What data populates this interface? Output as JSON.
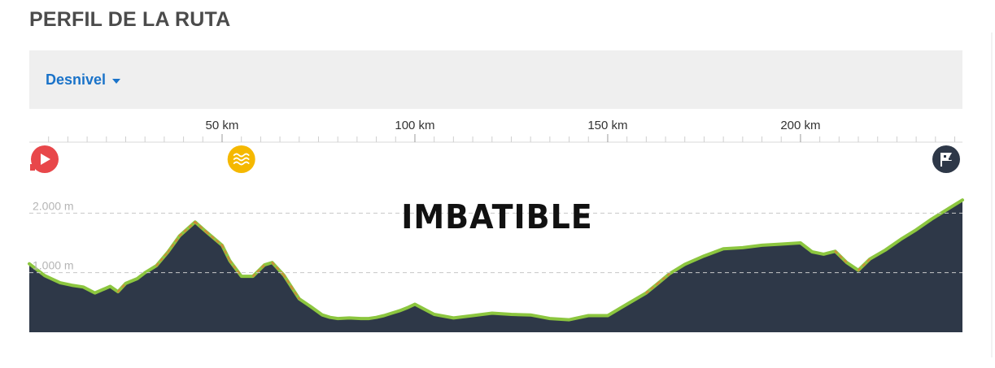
{
  "header": {
    "title": "PERFIL DE LA RUTA"
  },
  "toolbar": {
    "metric_label": "Desnivel",
    "caret_icon": "caret-down-icon"
  },
  "markers": [
    {
      "name": "start-icon",
      "km": 0,
      "color": "#e8474a"
    },
    {
      "name": "water-icon",
      "km": 55,
      "color": "#f5b800"
    },
    {
      "name": "finish-flag-icon",
      "km": 242,
      "color": "#2e3848"
    }
  ],
  "watermark": {
    "text": "IMBATIBLE"
  },
  "colors": {
    "profile_fill": "#2e3848",
    "profile_stroke": "#8cc63f",
    "steep_stroke": "#e07b39",
    "axis_text": "#333333",
    "gridline": "#c8c8c8"
  },
  "chart_data": {
    "type": "area",
    "title": "",
    "xlabel": "",
    "ylabel": "",
    "xlim": [
      0,
      242
    ],
    "ylim": [
      0,
      2400
    ],
    "x_ticks": [
      {
        "value": 50,
        "label": "50 km"
      },
      {
        "value": 100,
        "label": "100 km"
      },
      {
        "value": 150,
        "label": "150 km"
      },
      {
        "value": 200,
        "label": "200 km"
      }
    ],
    "y_ticks": [
      {
        "value": 1000,
        "label": "1.000 m"
      },
      {
        "value": 2000,
        "label": "2.000 m"
      }
    ],
    "grid": "horizontal dashed",
    "series": [
      {
        "x": [
          0,
          4,
          8,
          11,
          14,
          17,
          21,
          23,
          25,
          28,
          30,
          33,
          36,
          39,
          43,
          46,
          50,
          52,
          55,
          58,
          61,
          63,
          66,
          68,
          70,
          73,
          76,
          78,
          80,
          83,
          86,
          88,
          90,
          92,
          94,
          96,
          98,
          100,
          105,
          110,
          115,
          120,
          125,
          130,
          135,
          140,
          145,
          150,
          155,
          160,
          163,
          166,
          170,
          175,
          180,
          185,
          190,
          195,
          200,
          203,
          206,
          209,
          212,
          215,
          218,
          222,
          226,
          230,
          234,
          238,
          242
        ],
        "y": [
          1150,
          950,
          830,
          790,
          760,
          660,
          770,
          680,
          820,
          900,
          1000,
          1120,
          1350,
          1620,
          1850,
          1680,
          1460,
          1200,
          940,
          940,
          1130,
          1170,
          960,
          760,
          560,
          430,
          290,
          250,
          230,
          240,
          230,
          230,
          250,
          280,
          320,
          360,
          410,
          470,
          300,
          240,
          280,
          320,
          300,
          290,
          230,
          210,
          280,
          280,
          470,
          660,
          820,
          980,
          1140,
          1280,
          1400,
          1420,
          1460,
          1480,
          1500,
          1350,
          1310,
          1360,
          1170,
          1040,
          1230,
          1380,
          1560,
          1720,
          1900,
          2060,
          2220
        ]
      }
    ]
  }
}
